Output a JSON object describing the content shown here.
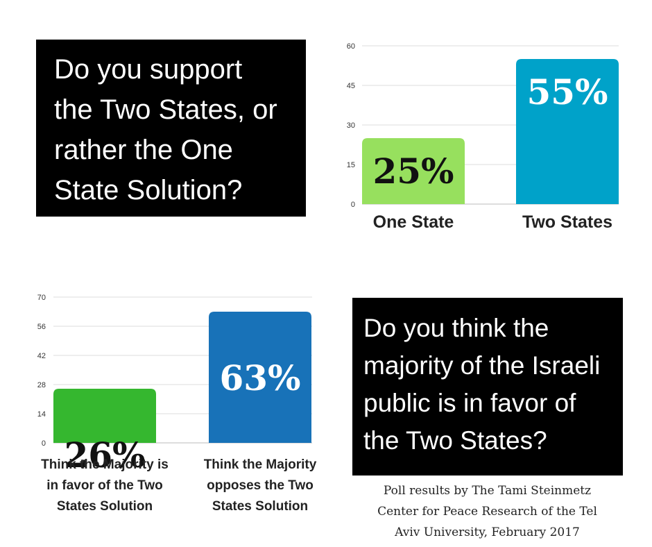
{
  "question1": {
    "lines": [
      "Do you support",
      "the Two States, or",
      "rather the One",
      "State Solution?"
    ]
  },
  "question2": {
    "lines": [
      "Do you think the",
      "majority of the Israeli",
      "public is in favor of",
      "the Two States?"
    ]
  },
  "credit": {
    "lines": [
      "Poll results by The Tami Steinmetz",
      "Center for Peace Research of the Tel",
      "Aviv University, February 2017"
    ]
  },
  "chart_data": [
    {
      "type": "bar",
      "categories": [
        "One State",
        "Two States"
      ],
      "values": [
        25,
        55
      ],
      "value_labels": [
        "25%",
        "55%"
      ],
      "colors": [
        "#97e05e",
        "#00a2c9"
      ],
      "label_colors": [
        "#111111",
        "#ffffff"
      ],
      "yticks": [
        0,
        15,
        30,
        45,
        60
      ],
      "ylim": [
        0,
        60
      ],
      "grid": true
    },
    {
      "type": "bar",
      "categories": [
        [
          "Think the Majority is",
          "in favor of the Two",
          "States Solution"
        ],
        [
          "Think the Majority",
          "opposes the Two",
          "States Solution"
        ]
      ],
      "values": [
        26,
        63
      ],
      "value_labels": [
        "26%",
        "63%"
      ],
      "colors": [
        "#35b72f",
        "#1872b8"
      ],
      "label_colors": [
        "#111111",
        "#ffffff"
      ],
      "yticks": [
        0,
        14,
        28,
        42,
        56,
        70
      ],
      "ylim": [
        0,
        70
      ],
      "grid": true
    }
  ]
}
